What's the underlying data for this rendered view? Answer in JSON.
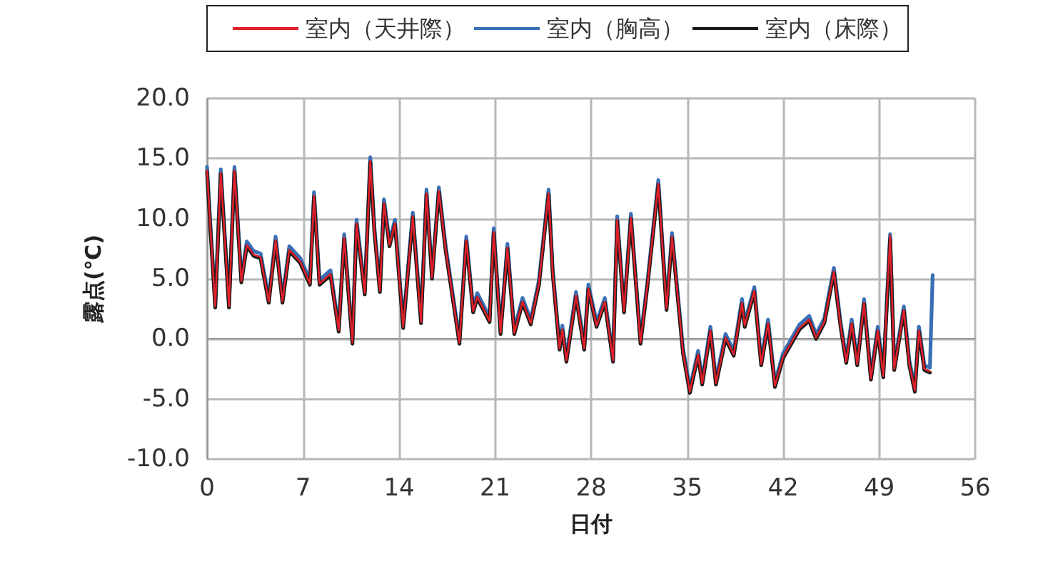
{
  "chart_data": {
    "type": "line",
    "xlabel": "日付",
    "ylabel": "露点(℃)",
    "grid": true,
    "legend": "top",
    "marker": "none",
    "line_style": "solid",
    "xlim": [
      0,
      56
    ],
    "xticks": [
      0,
      7,
      14,
      21,
      28,
      35,
      42,
      49,
      56
    ],
    "ylim": [
      -10,
      20
    ],
    "yticks": [
      {
        "value": -10,
        "label": "-10.0"
      },
      {
        "value": -5,
        "label": "-5.0"
      },
      {
        "value": 0,
        "label": "0.0"
      },
      {
        "value": 5,
        "label": "5.0"
      },
      {
        "value": 10,
        "label": "10.0"
      },
      {
        "value": 15,
        "label": "15.0"
      },
      {
        "value": 20,
        "label": "20.0"
      }
    ],
    "x": [
      0,
      0.24,
      0.6,
      1.0,
      1.6,
      2.0,
      2.5,
      2.9,
      3.4,
      3.9,
      4.5,
      5.0,
      5.5,
      6.0,
      6.8,
      7.5,
      7.8,
      8.2,
      9.0,
      9.6,
      10.0,
      10.6,
      10.9,
      11.5,
      11.9,
      12.2,
      12.6,
      12.9,
      13.3,
      13.7,
      14.3,
      15.0,
      15.6,
      16.0,
      16.4,
      16.9,
      17.4,
      18.4,
      18.9,
      19.4,
      19.7,
      20.6,
      20.9,
      21.4,
      21.9,
      22.4,
      23.0,
      23.6,
      24.2,
      24.9,
      25.2,
      25.7,
      25.9,
      26.2,
      26.9,
      27.5,
      27.8,
      28.4,
      29.0,
      29.6,
      29.9,
      30.4,
      30.9,
      31.6,
      32.1,
      32.9,
      33.5,
      33.9,
      34.7,
      35.2,
      35.8,
      36.1,
      36.7,
      37.1,
      37.8,
      38.4,
      39.0,
      39.2,
      39.9,
      40.4,
      40.9,
      41.4,
      42.0,
      43.2,
      43.9,
      44.4,
      45.0,
      45.7,
      46.2,
      46.6,
      47.0,
      47.4,
      47.9,
      48.4,
      48.9,
      49.3,
      49.8,
      50.1,
      50.8,
      51.2,
      51.6,
      51.9,
      52.3,
      52.7,
      52.9
    ],
    "series": [
      {
        "name": "室内（天井際）",
        "color": "#e0202a",
        "values": [
          14.0,
          9.3,
          2.7,
          13.8,
          2.7,
          14.0,
          4.8,
          7.8,
          7.0,
          6.8,
          3.1,
          8.2,
          3.1,
          7.4,
          6.4,
          4.6,
          11.9,
          4.6,
          5.4,
          0.7,
          8.4,
          -0.3,
          9.6,
          3.8,
          14.8,
          9.0,
          4.0,
          11.3,
          7.8,
          9.6,
          1.0,
          10.2,
          1.4,
          12.1,
          5.1,
          12.3,
          7.4,
          -0.3,
          8.2,
          2.3,
          3.5,
          1.5,
          8.9,
          0.5,
          7.6,
          0.5,
          3.1,
          1.3,
          4.6,
          12.1,
          5.5,
          -0.8,
          0.8,
          -1.8,
          3.6,
          -0.8,
          4.2,
          1.1,
          3.1,
          -1.8,
          9.9,
          2.3,
          10.1,
          -0.3,
          4.4,
          12.9,
          2.5,
          8.5,
          -1.1,
          -4.4,
          -1.3,
          -3.7,
          0.7,
          -3.7,
          0.1,
          -1.3,
          3.0,
          1.1,
          4.0,
          -2.1,
          1.3,
          -3.9,
          -1.5,
          0.9,
          1.6,
          0.1,
          1.4,
          5.6,
          1.0,
          -1.9,
          1.3,
          -2.1,
          3.0,
          -3.3,
          0.7,
          -3.1,
          8.6,
          -2.5,
          2.4,
          -2.1,
          -4.3,
          0.7,
          -2.5,
          -2.7,
          null
        ]
      },
      {
        "name": "室内（胸高）",
        "color": "#3a6fb5",
        "values": [
          14.3,
          9.6,
          3.0,
          14.1,
          3.0,
          14.3,
          5.1,
          8.1,
          7.3,
          7.1,
          3.4,
          8.5,
          3.4,
          7.7,
          6.7,
          4.9,
          12.2,
          4.9,
          5.7,
          1.0,
          8.7,
          0.0,
          9.9,
          4.1,
          15.1,
          9.3,
          4.3,
          11.6,
          8.1,
          9.9,
          1.3,
          10.5,
          1.7,
          12.4,
          5.4,
          12.6,
          7.7,
          0.0,
          8.5,
          2.6,
          3.8,
          1.8,
          9.2,
          0.8,
          7.9,
          0.8,
          3.4,
          1.6,
          4.9,
          12.4,
          5.8,
          -0.5,
          1.1,
          -1.5,
          3.9,
          -0.5,
          4.5,
          1.4,
          3.4,
          -1.5,
          10.2,
          2.6,
          10.4,
          0.0,
          4.7,
          13.2,
          2.8,
          8.8,
          -0.8,
          -4.1,
          -1.0,
          -3.4,
          1.0,
          -3.4,
          0.4,
          -1.0,
          3.3,
          1.4,
          4.3,
          -1.8,
          1.6,
          -3.6,
          -1.2,
          1.2,
          1.9,
          0.4,
          1.7,
          5.9,
          1.3,
          -1.6,
          1.6,
          -1.8,
          3.3,
          -3.0,
          1.0,
          -2.8,
          8.7,
          -2.2,
          2.7,
          -1.8,
          -4.0,
          1.0,
          -2.2,
          -2.4,
          5.3
        ]
      },
      {
        "name": "室内（床際）",
        "color": "#1a1a1a",
        "values": [
          13.9,
          9.2,
          2.6,
          13.7,
          2.6,
          13.9,
          4.7,
          7.7,
          6.9,
          6.7,
          3.0,
          8.1,
          3.0,
          7.3,
          6.3,
          4.5,
          11.8,
          4.5,
          5.3,
          0.6,
          8.3,
          -0.4,
          9.5,
          3.7,
          14.7,
          8.9,
          3.9,
          11.2,
          7.7,
          9.5,
          0.9,
          10.1,
          1.3,
          12.0,
          5.0,
          12.2,
          7.3,
          -0.4,
          8.1,
          2.2,
          3.4,
          1.4,
          8.8,
          0.4,
          7.5,
          0.4,
          3.0,
          1.2,
          4.5,
          12.0,
          5.4,
          -0.9,
          0.7,
          -1.9,
          3.5,
          -0.9,
          4.1,
          1.0,
          3.0,
          -1.9,
          9.8,
          2.2,
          10.0,
          -0.4,
          4.3,
          12.8,
          2.4,
          8.4,
          -1.2,
          -4.5,
          -1.4,
          -3.8,
          0.6,
          -3.8,
          0.0,
          -1.4,
          2.9,
          1.0,
          3.9,
          -2.2,
          1.2,
          -4.0,
          -1.6,
          0.8,
          1.5,
          0.0,
          1.3,
          5.5,
          0.9,
          -2.0,
          1.2,
          -2.2,
          2.9,
          -3.4,
          0.6,
          -3.2,
          8.3,
          -2.6,
          2.3,
          -2.2,
          -4.4,
          0.6,
          -2.6,
          -2.8,
          null
        ]
      }
    ]
  }
}
